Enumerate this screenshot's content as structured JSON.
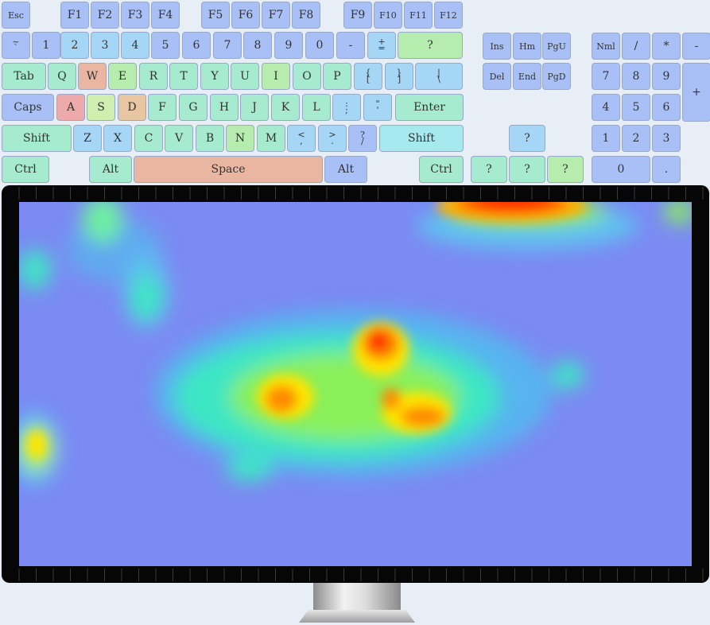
{
  "keyboard": {
    "keys": [
      {
        "id": "esc",
        "label": "Esc",
        "color": "#a9c0f6"
      },
      {
        "id": "f1",
        "label": "F1",
        "color": "#a9c0f6"
      },
      {
        "id": "f2",
        "label": "F2",
        "color": "#a9c0f6"
      },
      {
        "id": "f3",
        "label": "F3",
        "color": "#a9c0f6"
      },
      {
        "id": "f4",
        "label": "F4",
        "color": "#a9c0f6"
      },
      {
        "id": "f5",
        "label": "F5",
        "color": "#a9c0f6"
      },
      {
        "id": "f6",
        "label": "F6",
        "color": "#a9c0f6"
      },
      {
        "id": "f7",
        "label": "F7",
        "color": "#a9c0f6"
      },
      {
        "id": "f8",
        "label": "F8",
        "color": "#a9c0f6"
      },
      {
        "id": "f9",
        "label": "F9",
        "color": "#a9c0f6"
      },
      {
        "id": "f10",
        "label": "F10",
        "color": "#a9c0f6"
      },
      {
        "id": "f11",
        "label": "F11",
        "color": "#a9c0f6"
      },
      {
        "id": "f12",
        "label": "F12",
        "color": "#a9c0f6"
      },
      {
        "id": "backtick",
        "label": "`",
        "label2": "~",
        "color": "#a9c0f6"
      },
      {
        "id": "1",
        "label": "1",
        "color": "#a9c0f6"
      },
      {
        "id": "2",
        "label": "2",
        "color": "#a6d6f6"
      },
      {
        "id": "3",
        "label": "3",
        "color": "#a6d6f6"
      },
      {
        "id": "4",
        "label": "4",
        "color": "#a6d6f6"
      },
      {
        "id": "5",
        "label": "5",
        "color": "#a9c0f6"
      },
      {
        "id": "6",
        "label": "6",
        "color": "#a9c0f6"
      },
      {
        "id": "7",
        "label": "7",
        "color": "#a9c0f6"
      },
      {
        "id": "8",
        "label": "8",
        "color": "#a9c0f6"
      },
      {
        "id": "9",
        "label": "9",
        "color": "#a9c0f6"
      },
      {
        "id": "0",
        "label": "0",
        "color": "#a9c0f6"
      },
      {
        "id": "minus",
        "label": "-",
        "color": "#a9c0f6"
      },
      {
        "id": "equals",
        "label": "=",
        "label2": "+",
        "color": "#a6d6f6"
      },
      {
        "id": "backspace",
        "label": "?",
        "color": "#b6ecae"
      },
      {
        "id": "tab",
        "label": "Tab",
        "color": "#a6ead0"
      },
      {
        "id": "q",
        "label": "Q",
        "color": "#a6ead0"
      },
      {
        "id": "w",
        "label": "W",
        "color": "#e9b6a2"
      },
      {
        "id": "e",
        "label": "E",
        "color": "#b6ecae"
      },
      {
        "id": "r",
        "label": "R",
        "color": "#a6ead0"
      },
      {
        "id": "t",
        "label": "T",
        "color": "#a6ead0"
      },
      {
        "id": "y",
        "label": "Y",
        "color": "#a6ead0"
      },
      {
        "id": "u",
        "label": "U",
        "color": "#a6ead0"
      },
      {
        "id": "i",
        "label": "I",
        "color": "#b6ecae"
      },
      {
        "id": "o",
        "label": "O",
        "color": "#a6ead0"
      },
      {
        "id": "p",
        "label": "P",
        "color": "#a6ead0"
      },
      {
        "id": "lbracket",
        "label": "[",
        "label2": "{",
        "color": "#a6d6f6"
      },
      {
        "id": "rbracket",
        "label": "]",
        "label2": "}",
        "color": "#a6d6f6"
      },
      {
        "id": "backslash",
        "label": "\\",
        "label2": "|",
        "color": "#a6d6f6"
      },
      {
        "id": "caps",
        "label": "Caps",
        "color": "#a9c0f6"
      },
      {
        "id": "a",
        "label": "A",
        "color": "#eeaaaa"
      },
      {
        "id": "s",
        "label": "S",
        "color": "#d0eeb0"
      },
      {
        "id": "d",
        "label": "D",
        "color": "#e9c6a2"
      },
      {
        "id": "f",
        "label": "F",
        "color": "#a6ead0"
      },
      {
        "id": "g",
        "label": "G",
        "color": "#a6ead0"
      },
      {
        "id": "h",
        "label": "H",
        "color": "#a6ead0"
      },
      {
        "id": "j",
        "label": "J",
        "color": "#a6ead0"
      },
      {
        "id": "k",
        "label": "K",
        "color": "#a6ead0"
      },
      {
        "id": "l",
        "label": "L",
        "color": "#a6ead0"
      },
      {
        "id": "semicolon",
        "label": ";",
        "label2": ":",
        "color": "#a6d6f6"
      },
      {
        "id": "quote",
        "label": "'",
        "label2": "\"",
        "color": "#a6d6f6"
      },
      {
        "id": "enter",
        "label": "Enter",
        "color": "#a6ead0"
      },
      {
        "id": "lshift",
        "label": "Shift",
        "color": "#a6ead0"
      },
      {
        "id": "z",
        "label": "Z",
        "color": "#a6d6f6"
      },
      {
        "id": "x",
        "label": "X",
        "color": "#a6d6f6"
      },
      {
        "id": "c",
        "label": "C",
        "color": "#a6ead0"
      },
      {
        "id": "v",
        "label": "V",
        "color": "#a6ead0"
      },
      {
        "id": "b",
        "label": "B",
        "color": "#a6ead0"
      },
      {
        "id": "n",
        "label": "N",
        "color": "#b6ecae"
      },
      {
        "id": "m",
        "label": "M",
        "color": "#a6ead0"
      },
      {
        "id": "comma",
        "label": ",",
        "label2": "<",
        "color": "#a6d6f6"
      },
      {
        "id": "period",
        "label": ".",
        "label2": ">",
        "color": "#a6d6f6"
      },
      {
        "id": "slash",
        "label": "/",
        "label2": "?",
        "color": "#a9c0f6"
      },
      {
        "id": "rshift",
        "label": "Shift",
        "color": "#a6eaf0"
      },
      {
        "id": "lctrl",
        "label": "Ctrl",
        "color": "#a6ead0"
      },
      {
        "id": "lalt",
        "label": "Alt",
        "color": "#a6ead0"
      },
      {
        "id": "space",
        "label": "Space",
        "color": "#e9b6a2"
      },
      {
        "id": "ralt",
        "label": "Alt",
        "color": "#a9c0f6"
      },
      {
        "id": "rctrl",
        "label": "Ctrl",
        "color": "#a6ead0"
      },
      {
        "id": "ins",
        "label": "Ins",
        "color": "#a9c0f6"
      },
      {
        "id": "home",
        "label": "Hm",
        "color": "#a9c0f6"
      },
      {
        "id": "pgup",
        "label": "PgU",
        "color": "#a9c0f6"
      },
      {
        "id": "del",
        "label": "Del",
        "color": "#a9c0f6"
      },
      {
        "id": "end",
        "label": "End",
        "color": "#a9c0f6"
      },
      {
        "id": "pgdn",
        "label": "PgD",
        "color": "#a9c0f6"
      },
      {
        "id": "up",
        "label": "?",
        "color": "#a6d6f6"
      },
      {
        "id": "left",
        "label": "?",
        "color": "#a6ead0"
      },
      {
        "id": "down",
        "label": "?",
        "color": "#a6ead0"
      },
      {
        "id": "right",
        "label": "?",
        "color": "#b6ecae"
      },
      {
        "id": "numlock",
        "label": "Nml",
        "color": "#a9c0f6"
      },
      {
        "id": "numdiv",
        "label": "/",
        "color": "#a9c0f6"
      },
      {
        "id": "nummul",
        "label": "*",
        "color": "#a9c0f6"
      },
      {
        "id": "numsub",
        "label": "-",
        "color": "#a9c0f6"
      },
      {
        "id": "num7",
        "label": "7",
        "color": "#a9c0f6"
      },
      {
        "id": "num8",
        "label": "8",
        "color": "#a9c0f6"
      },
      {
        "id": "num9",
        "label": "9",
        "color": "#a9c0f6"
      },
      {
        "id": "numadd",
        "label": "+",
        "color": "#a9c0f6"
      },
      {
        "id": "num4",
        "label": "4",
        "color": "#a9c0f6"
      },
      {
        "id": "num5",
        "label": "5",
        "color": "#a9c0f6"
      },
      {
        "id": "num6",
        "label": "6",
        "color": "#a9c0f6"
      },
      {
        "id": "num1",
        "label": "1",
        "color": "#a9c0f6"
      },
      {
        "id": "num2",
        "label": "2",
        "color": "#a9c0f6"
      },
      {
        "id": "num3",
        "label": "3",
        "color": "#a9c0f6"
      },
      {
        "id": "num0",
        "label": "0",
        "color": "#a9c0f6"
      },
      {
        "id": "numdot",
        "label": ".",
        "color": "#a9c0f6"
      }
    ]
  },
  "screen_heatmap": {
    "background_color": "#7b8bf3",
    "hotspot_colors": [
      "#ff2a00",
      "#ff8a00",
      "#ffe400",
      "#8af05a",
      "#3ee6c4",
      "#5cc6f0"
    ]
  },
  "monitor": {
    "bezel_color": "#060606",
    "stand_color": "#c8c8c8"
  }
}
